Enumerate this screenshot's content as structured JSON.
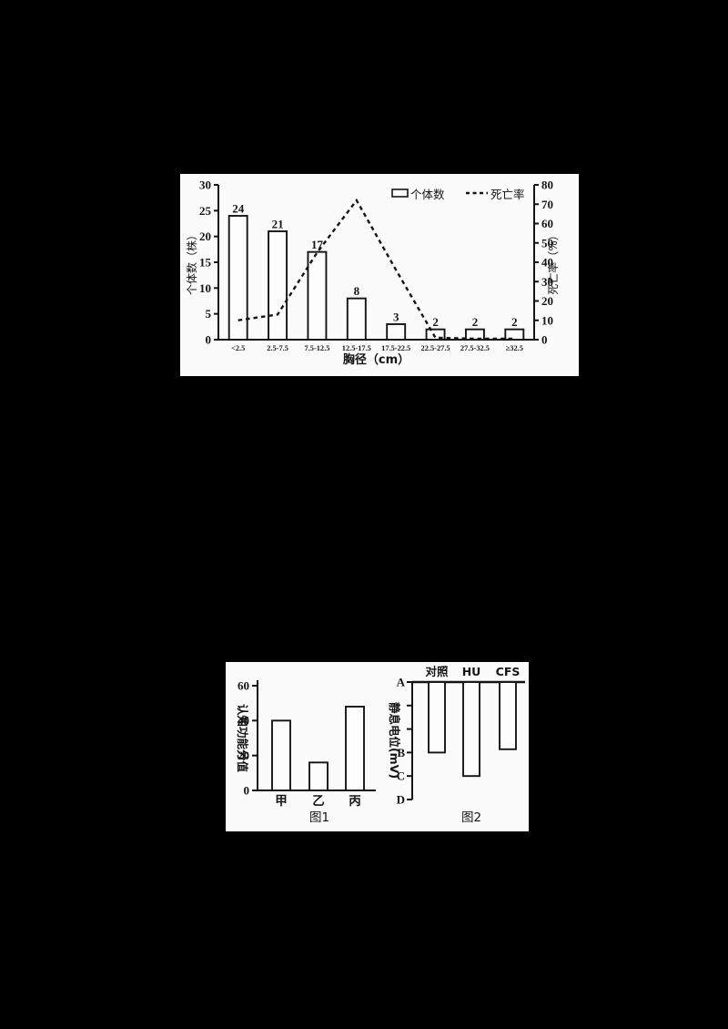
{
  "page": {
    "background_color": "#000000",
    "panel_color": "#fbfbfb",
    "ink_color": "#141414"
  },
  "chart_data": [
    {
      "id": "dbh_population_chart",
      "type": "bar",
      "dual_axis": true,
      "categories": [
        "<2.5",
        "2.5-7.5",
        "7.5-12.5",
        "12.5-17.5",
        "17.5-22.5",
        "22.5-27.5",
        "27.5-32.5",
        "≥32.5"
      ],
      "series": [
        {
          "name": "个体数",
          "type": "bar",
          "axis": "left",
          "values": [
            24,
            21,
            17,
            8,
            3,
            2,
            2,
            2
          ],
          "value_labels": [
            "24",
            "21",
            "17",
            "8",
            "3",
            "2",
            "2",
            "2"
          ]
        },
        {
          "name": "死亡率",
          "type": "line",
          "line_style": "dashed",
          "axis": "right",
          "values": [
            10,
            13,
            45,
            72,
            36,
            1,
            0.5,
            0.5
          ]
        }
      ],
      "left_axis": {
        "label": "个体数（株）",
        "ticks": [
          0,
          5,
          10,
          15,
          20,
          25,
          30
        ],
        "range": [
          0,
          30
        ]
      },
      "right_axis": {
        "label": "死亡率（%）",
        "ticks": [
          0,
          10,
          20,
          30,
          40,
          50,
          60,
          70,
          80
        ],
        "range": [
          0,
          80
        ]
      },
      "xlabel": "胸径（cm）",
      "legend": [
        {
          "label": "个体数",
          "marker": "open-bar"
        },
        {
          "label": "死亡率",
          "marker": "dashed-line"
        }
      ],
      "grid": false,
      "legend_position": "top-right-inside"
    },
    {
      "id": "fig1_cognitive_score",
      "type": "bar",
      "caption": "图1",
      "categories": [
        "甲",
        "乙",
        "丙"
      ],
      "values": [
        40,
        16,
        48
      ],
      "ylabel": "认知功能分值",
      "yticks": [
        0,
        20,
        40,
        60
      ],
      "ylim": [
        0,
        60
      ],
      "grid": false
    },
    {
      "id": "fig2_resting_potential",
      "type": "bar",
      "direction": "downward-from-top-axis",
      "caption": "图2",
      "categories": [
        "对照",
        "HU",
        "CFS"
      ],
      "ylabel": "静息电位(mV)",
      "ytick_labels": [
        "A",
        "",
        "",
        "B",
        "C",
        "D"
      ],
      "bar_depth_in_tick_units": [
        3,
        4,
        2.86
      ],
      "grid": false
    }
  ]
}
